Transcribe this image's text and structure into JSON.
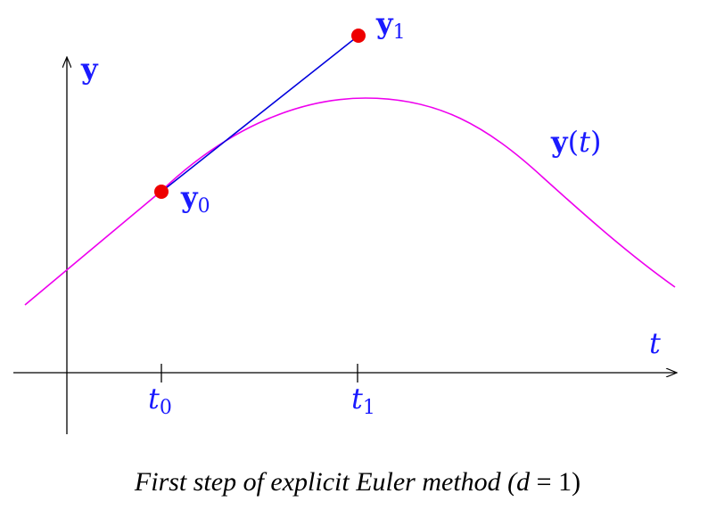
{
  "axes": {
    "y_label": "y",
    "t_label": "t"
  },
  "ticks": [
    {
      "base": "t",
      "sub": "0"
    },
    {
      "base": "t",
      "sub": "1"
    }
  ],
  "points": [
    {
      "base": "y",
      "sub": "0"
    },
    {
      "base": "y",
      "sub": "1"
    }
  ],
  "curve_label": {
    "base": "y",
    "open": "(",
    "var": "t",
    "close": ")"
  },
  "caption": {
    "main": "First step of explicit Euler method (",
    "var": "d",
    "eq": " = 1)"
  },
  "colors": {
    "curve": "#ee00ee",
    "tangent": "#0000dd",
    "points": "#ee0000",
    "labels": "#1a1aff",
    "axes": "#000000"
  }
}
